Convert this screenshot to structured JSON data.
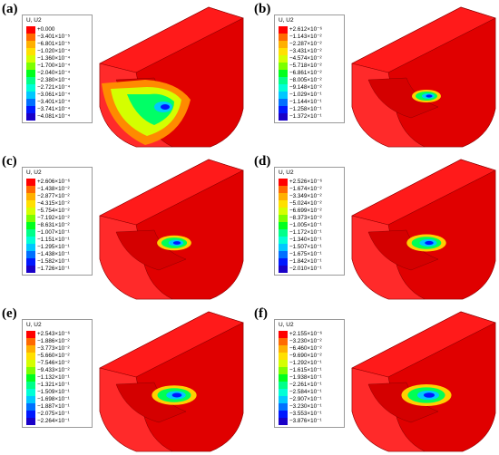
{
  "legend_colors": [
    "#ff0000",
    "#ff6a00",
    "#ffb000",
    "#ffe000",
    "#d4ff00",
    "#7cff00",
    "#00ff1e",
    "#00ff8a",
    "#00ffd6",
    "#00c8ff",
    "#0070ff",
    "#0018ff",
    "#1a00c8"
  ],
  "panels": [
    {
      "label": "(a)",
      "legend_title": "U, U2",
      "values": [
        "+0.000",
        "−3.401×10⁻⁵",
        "−6.801×10⁻⁵",
        "−1.020×10⁻⁴",
        "−1.360×10⁻⁴",
        "−1.700×10⁻⁴",
        "−2.040×10⁻⁴",
        "−2.380×10⁻⁴",
        "−2.721×10⁻⁴",
        "−3.061×10⁻⁴",
        "−3.401×10⁻⁴",
        "−3.741×10⁻⁴",
        "−4.081×10⁻⁴"
      ]
    },
    {
      "label": "(b)",
      "legend_title": "U, U2",
      "values": [
        "+2.612×10⁻⁶",
        "−1.143×10⁻²",
        "−2.287×10⁻²",
        "−3.431×10⁻²",
        "−4.574×10⁻²",
        "−5.718×10⁻²",
        "−6.861×10⁻²",
        "−8.005×10⁻²",
        "−9.148×10⁻²",
        "−1.029×10⁻¹",
        "−1.144×10⁻¹",
        "−1.258×10⁻¹",
        "−1.372×10⁻¹"
      ]
    },
    {
      "label": "(c)",
      "legend_title": "U, U2",
      "values": [
        "+2.606×10⁻⁶",
        "−1.438×10⁻²",
        "−2.877×10⁻²",
        "−4.315×10⁻²",
        "−5.754×10⁻²",
        "−7.192×10⁻²",
        "−8.631×10⁻²",
        "−1.007×10⁻¹",
        "−1.151×10⁻¹",
        "−1.295×10⁻¹",
        "−1.438×10⁻¹",
        "−1.582×10⁻¹",
        "−1.726×10⁻¹"
      ]
    },
    {
      "label": "(d)",
      "legend_title": "U, U2",
      "values": [
        "+2.526×10⁻⁶",
        "−1.674×10⁻²",
        "−3.349×10⁻²",
        "−5.024×10⁻²",
        "−6.699×10⁻²",
        "−8.373×10⁻²",
        "−1.005×10⁻¹",
        "−1.172×10⁻¹",
        "−1.340×10⁻¹",
        "−1.507×10⁻¹",
        "−1.675×10⁻¹",
        "−1.842×10⁻¹",
        "−2.010×10⁻¹"
      ]
    },
    {
      "label": "(e)",
      "legend_title": "U, U2",
      "values": [
        "+2.543×10⁻⁶",
        "−1.886×10⁻²",
        "−3.773×10⁻²",
        "−5.660×10⁻²",
        "−7.546×10⁻²",
        "−9.433×10⁻²",
        "−1.132×10⁻¹",
        "−1.321×10⁻¹",
        "−1.509×10⁻¹",
        "−1.698×10⁻¹",
        "−1.887×10⁻¹",
        "−2.075×10⁻¹",
        "−2.264×10⁻¹"
      ]
    },
    {
      "label": "(f)",
      "legend_title": "U, U2",
      "values": [
        "+2.155×10⁻⁶",
        "−3.230×10⁻²",
        "−6.460×10⁻²",
        "−9.690×10⁻²",
        "−1.292×10⁻¹",
        "−1.615×10⁻¹",
        "−1.938×10⁻¹",
        "−2.261×10⁻¹",
        "−2.584×10⁻¹",
        "−2.907×10⁻¹",
        "−3.230×10⁻¹",
        "−3.553×10⁻¹",
        "−3.876×10⁻¹"
      ]
    }
  ]
}
